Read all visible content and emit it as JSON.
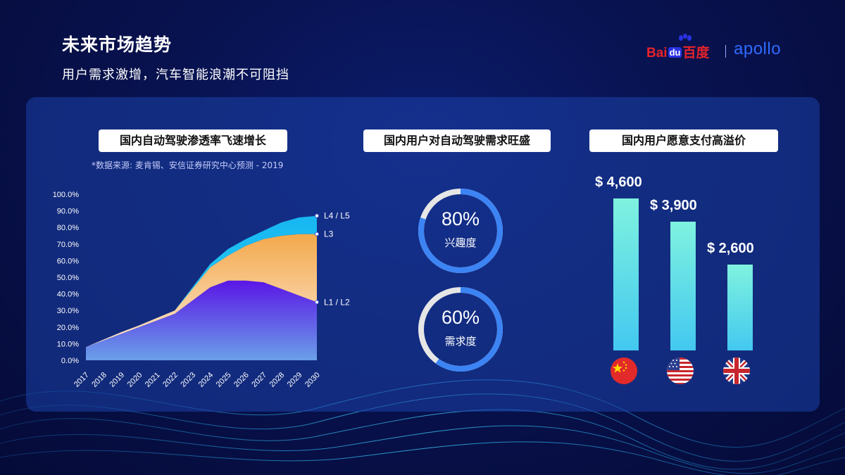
{
  "header": {
    "title": "未来市场趋势",
    "subtitle": "用户需求激增，汽车智能浪潮不可阻挡"
  },
  "logo": {
    "baidu_pre": "Bai",
    "baidu_du": "du",
    "baidu_post": "百度",
    "apollo": "apollo"
  },
  "left_panel": {
    "heading": "国内自动驾驶渗透率飞速增长",
    "source": "*数据来源: 麦肯锡、安信证券研究中心预测 - 2019"
  },
  "middle_panel": {
    "heading": "国内用户对自动驾驶需求旺盛",
    "rings": [
      {
        "value_text": "80%",
        "value": 0.8,
        "label": "兴趣度"
      },
      {
        "value_text": "60%",
        "value": 0.6,
        "label": "需求度"
      }
    ]
  },
  "right_panel": {
    "heading": "国内用户愿意支付高溢价"
  },
  "chart_data": [
    {
      "type": "area",
      "title": "国内自动驾驶渗透率飞速增长",
      "x": [
        "2017",
        "2018",
        "2019",
        "2020",
        "2021",
        "2022",
        "2023",
        "2024",
        "2025",
        "2026",
        "2027",
        "2028",
        "2029",
        "2030"
      ],
      "ylim": [
        0,
        100
      ],
      "y_ticks": [
        "0.0%",
        "10.0%",
        "20.0%",
        "30.0%",
        "40.0%",
        "50.0%",
        "60.0%",
        "70.0%",
        "80.0%",
        "90.0%",
        "100.0%"
      ],
      "stacked": true,
      "series": [
        {
          "name": "L1 / L2",
          "values": [
            8,
            12,
            16,
            20,
            24,
            28,
            36,
            44,
            48,
            48,
            47,
            43,
            39,
            35
          ],
          "color": "#5f1fe8"
        },
        {
          "name": "L3",
          "values": [
            0,
            0.5,
            1,
            1,
            1.5,
            2,
            7,
            12,
            15,
            21,
            26,
            32,
            37,
            41
          ],
          "color": "#f3b05f"
        },
        {
          "name": "L4 / L5",
          "values": [
            0,
            0,
            0,
            0,
            0,
            0,
            1,
            2,
            4,
            4,
            5,
            8,
            10,
            11
          ],
          "color": "#19c3f0"
        }
      ],
      "legend": "right"
    },
    {
      "type": "bar",
      "title": "国内用户愿意支付高溢价",
      "categories": [
        "China",
        "USA",
        "UK"
      ],
      "values": [
        4600,
        3900,
        2600
      ],
      "value_labels": [
        "$ 4,600",
        "$ 3,900",
        "$ 2,600"
      ],
      "icons": [
        "china-flag-icon",
        "usa-flag-icon",
        "uk-flag-icon"
      ],
      "ylim": [
        0,
        4600
      ]
    }
  ]
}
